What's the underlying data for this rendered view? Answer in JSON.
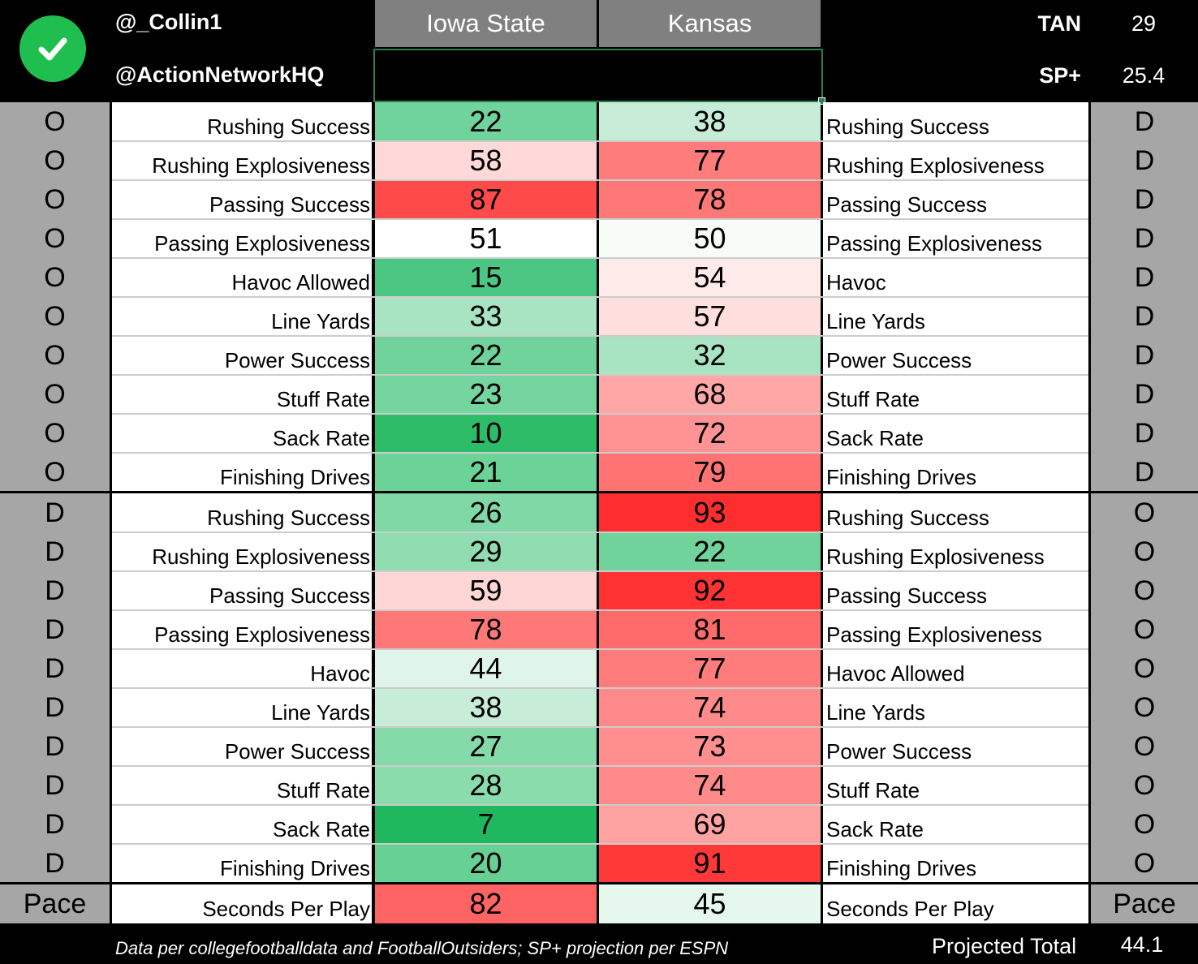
{
  "header": {
    "handle_1": "@_Collin1",
    "handle_2": "@ActionNetworkHQ",
    "team_left": "Iowa State",
    "team_right": "Kansas",
    "tan_label": "TAN",
    "tan_value": "29",
    "sp_label": "SP+",
    "sp_value": "25.4"
  },
  "rows": [
    {
      "side_l": "O",
      "label_l": "Rushing Success",
      "val_l": "22",
      "color_l": "#6fd39b",
      "val_r": "38",
      "color_r": "#c7ecd7",
      "label_r": "Rushing Success",
      "side_r": "D"
    },
    {
      "side_l": "O",
      "label_l": "Rushing Explosiveness",
      "val_l": "58",
      "color_l": "#ffd9d9",
      "val_r": "77",
      "color_r": "#ff7c7c",
      "label_r": "Rushing Explosiveness",
      "side_r": "D"
    },
    {
      "side_l": "O",
      "label_l": "Passing Success",
      "val_l": "87",
      "color_l": "#ff4a4a",
      "val_r": "78",
      "color_r": "#ff7878",
      "label_r": "Passing Success",
      "side_r": "D"
    },
    {
      "side_l": "O",
      "label_l": "Passing Explosiveness",
      "val_l": "51",
      "color_l": "#ffffff",
      "val_r": "50",
      "color_r": "#f7fcf9",
      "label_r": "Passing Explosiveness",
      "side_r": "D"
    },
    {
      "side_l": "O",
      "label_l": "Havoc Allowed",
      "val_l": "15",
      "color_l": "#4bc683",
      "val_r": "54",
      "color_r": "#ffeaea",
      "label_r": "Havoc",
      "side_r": "D"
    },
    {
      "side_l": "O",
      "label_l": "Line Yards",
      "val_l": "33",
      "color_l": "#a8e3c2",
      "val_r": "57",
      "color_r": "#ffdede",
      "label_r": "Line Yards",
      "side_r": "D"
    },
    {
      "side_l": "O",
      "label_l": "Power Success",
      "val_l": "22",
      "color_l": "#6fd39b",
      "val_r": "32",
      "color_r": "#a8e3c2",
      "label_r": "Power Success",
      "side_r": "D"
    },
    {
      "side_l": "O",
      "label_l": "Stuff Rate",
      "val_l": "23",
      "color_l": "#74d59e",
      "val_r": "68",
      "color_r": "#ffa6a6",
      "label_r": "Stuff Rate",
      "side_r": "D"
    },
    {
      "side_l": "O",
      "label_l": "Sack Rate",
      "val_l": "10",
      "color_l": "#2dbd69",
      "val_r": "72",
      "color_r": "#ff9393",
      "label_r": "Sack Rate",
      "side_r": "D"
    },
    {
      "side_l": "O",
      "label_l": "Finishing Drives",
      "val_l": "21",
      "color_l": "#6bd298",
      "val_r": "79",
      "color_r": "#ff7373",
      "label_r": "Finishing Drives",
      "side_r": "D"
    },
    {
      "side_l": "D",
      "label_l": "Rushing Success",
      "val_l": "26",
      "color_l": "#7fd8a6",
      "val_r": "93",
      "color_r": "#ff2e2e",
      "label_r": "Rushing Success",
      "side_r": "O"
    },
    {
      "side_l": "D",
      "label_l": "Rushing Explosiveness",
      "val_l": "29",
      "color_l": "#90ddb1",
      "val_r": "22",
      "color_r": "#6fd39b",
      "label_r": "Rushing Explosiveness",
      "side_r": "O"
    },
    {
      "side_l": "D",
      "label_l": "Passing Success",
      "val_l": "59",
      "color_l": "#ffd6d6",
      "val_r": "92",
      "color_r": "#ff3333",
      "label_r": "Passing Success",
      "side_r": "O"
    },
    {
      "side_l": "D",
      "label_l": "Passing Explosiveness",
      "val_l": "78",
      "color_l": "#ff7878",
      "val_r": "81",
      "color_r": "#ff6a6a",
      "label_r": "Passing Explosiveness",
      "side_r": "O"
    },
    {
      "side_l": "D",
      "label_l": "Havoc",
      "val_l": "44",
      "color_l": "#e0f5e9",
      "val_r": "77",
      "color_r": "#ff7c7c",
      "label_r": "Havoc Allowed",
      "side_r": "O"
    },
    {
      "side_l": "D",
      "label_l": "Line Yards",
      "val_l": "38",
      "color_l": "#c7ecd7",
      "val_r": "74",
      "color_r": "#ff8a8a",
      "label_r": "Line Yards",
      "side_r": "O"
    },
    {
      "side_l": "D",
      "label_l": "Power Success",
      "val_l": "27",
      "color_l": "#84daa9",
      "val_r": "73",
      "color_r": "#ff8e8e",
      "label_r": "Power Success",
      "side_r": "O"
    },
    {
      "side_l": "D",
      "label_l": "Stuff Rate",
      "val_l": "28",
      "color_l": "#8adcad",
      "val_r": "74",
      "color_r": "#ff8a8a",
      "label_r": "Stuff Rate",
      "side_r": "O"
    },
    {
      "side_l": "D",
      "label_l": "Sack Rate",
      "val_l": "7",
      "color_l": "#1fb85f",
      "val_r": "69",
      "color_r": "#ffa2a2",
      "label_r": "Sack Rate",
      "side_r": "O"
    },
    {
      "side_l": "D",
      "label_l": "Finishing Drives",
      "val_l": "20",
      "color_l": "#66d095",
      "val_r": "91",
      "color_r": "#ff3838",
      "label_r": "Finishing Drives",
      "side_r": "O"
    }
  ],
  "pace_row": {
    "side_l": "Pace",
    "label_l": "Seconds Per Play",
    "val_l": "82",
    "color_l": "#ff6464",
    "val_r": "45",
    "color_r": "#e6f7ed",
    "label_r": "Seconds Per Play",
    "side_r": "Pace"
  },
  "footer": {
    "source": "Data per collegefootballdata and FootballOutsiders; SP+ projection per ESPN",
    "projected_label": "Projected Total",
    "projected_value": "44.1"
  }
}
